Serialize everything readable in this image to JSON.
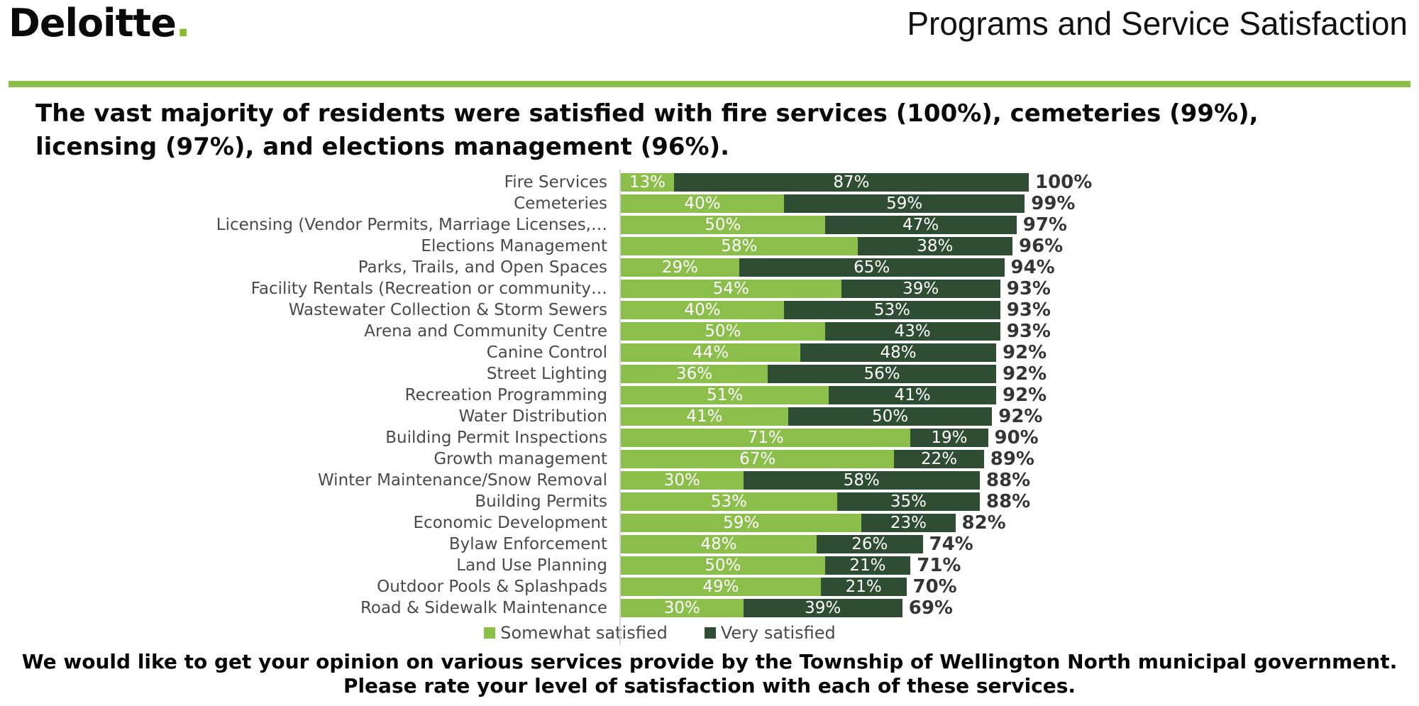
{
  "header": {
    "logo_text": "Deloitte",
    "logo_dot": ".",
    "title": "Programs and Service Satisfaction"
  },
  "headline": "The vast majority of residents were satisfied with fire services (100%), cemeteries (99%), licensing (97%), and elections management (96%).",
  "chart_data": {
    "type": "bar",
    "orientation": "horizontal",
    "stacked": true,
    "xlim": [
      0,
      100
    ],
    "value_suffix": "%",
    "legend_position": "bottom",
    "categories": [
      "Fire Services",
      "Cemeteries",
      "Licensing (Vendor Permits, Marriage Licenses,…",
      "Elections Management",
      "Parks, Trails, and Open Spaces",
      "Facility Rentals (Recreation or community…",
      "Wastewater Collection & Storm Sewers",
      "Arena and Community Centre",
      "Canine Control",
      "Street Lighting",
      "Recreation Programming",
      "Water Distribution",
      "Building Permit Inspections",
      "Growth management",
      "Winter Maintenance/Snow Removal",
      "Building Permits",
      "Economic Development",
      "Bylaw Enforcement",
      "Land Use Planning",
      "Outdoor Pools & Splashpads",
      "Road & Sidewalk Maintenance"
    ],
    "series": [
      {
        "name": "Somewhat satisfied",
        "color": "#8cbe4c",
        "values": [
          13,
          40,
          50,
          58,
          29,
          54,
          40,
          50,
          44,
          36,
          51,
          41,
          71,
          67,
          30,
          53,
          59,
          48,
          50,
          49,
          30
        ]
      },
      {
        "name": "Very satisfied",
        "color": "#2f4d33",
        "values": [
          87,
          59,
          47,
          38,
          65,
          39,
          53,
          43,
          48,
          56,
          41,
          50,
          19,
          22,
          58,
          35,
          23,
          26,
          21,
          21,
          39
        ]
      }
    ],
    "totals": [
      "100%",
      "99%",
      "97%",
      "96%",
      "94%",
      "93%",
      "93%",
      "93%",
      "92%",
      "92%",
      "92%",
      "92%",
      "90%",
      "89%",
      "88%",
      "88%",
      "82%",
      "74%",
      "71%",
      "70%",
      "69%"
    ]
  },
  "legend": {
    "items": [
      {
        "label": "Somewhat satisfied",
        "color": "#8cbe4c"
      },
      {
        "label": "Very satisfied",
        "color": "#2f4d33"
      }
    ]
  },
  "footnote": {
    "line1": "We would like to get your opinion on various services provide by the Township of Wellington North municipal government.",
    "line2": "Please rate your level of satisfaction with each of these services."
  },
  "colors": {
    "accent_green": "#8cbe4c",
    "dark_green": "#2f4d33",
    "logo_dot_green": "#86bc25",
    "label_gray": "#4a4a4a",
    "background": "#ffffff"
  }
}
